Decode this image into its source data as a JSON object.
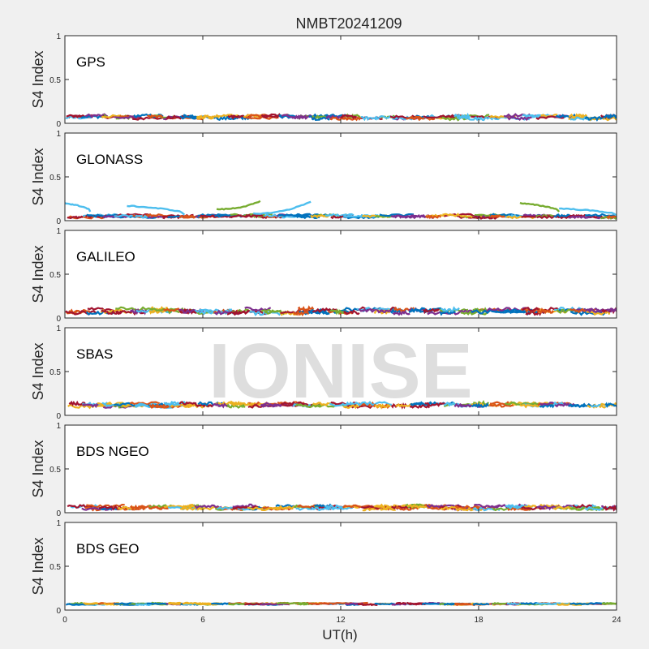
{
  "chart_data": {
    "type": "line",
    "title": "NMBT20241209",
    "xlabel": "UT(h)",
    "ylabel": "S4 Index",
    "xlim": [
      0,
      24
    ],
    "xticks": [
      "0",
      "6",
      "12",
      "18",
      "24"
    ],
    "ylim": [
      0,
      1
    ],
    "yticks": [
      "0",
      "0.5",
      "1"
    ],
    "grid": false,
    "watermark": "IONISE",
    "series_colors": [
      "#0072bd",
      "#d95319",
      "#edb120",
      "#7e2f8e",
      "#77ac30",
      "#4dbeee",
      "#a2142f"
    ],
    "panels": [
      {
        "label": "GPS",
        "baseline": 0.07,
        "noise": 0.02,
        "arcs": []
      },
      {
        "label": "GLONASS",
        "baseline": 0.05,
        "noise": 0.015,
        "arcs": [
          {
            "x0": 0.0,
            "x1": 1.1,
            "y0": 0.2,
            "y1": 0.1,
            "color": "#4dbeee"
          },
          {
            "x0": 2.7,
            "x1": 5.2,
            "y0": 0.17,
            "y1": 0.07,
            "color": "#4dbeee"
          },
          {
            "x0": 6.6,
            "x1": 8.5,
            "y0": 0.13,
            "y1": 0.22,
            "color": "#77ac30"
          },
          {
            "x0": 8.2,
            "x1": 10.7,
            "y0": 0.08,
            "y1": 0.22,
            "color": "#4dbeee"
          },
          {
            "x0": 19.8,
            "x1": 21.5,
            "y0": 0.2,
            "y1": 0.1,
            "color": "#77ac30"
          },
          {
            "x0": 21.5,
            "x1": 24.0,
            "y0": 0.14,
            "y1": 0.06,
            "color": "#4dbeee"
          }
        ]
      },
      {
        "label": "GALILEO",
        "baseline": 0.08,
        "noise": 0.025,
        "arcs": []
      },
      {
        "label": "SBAS",
        "baseline": 0.12,
        "noise": 0.02,
        "arcs": []
      },
      {
        "label": "BDS NGEO",
        "baseline": 0.06,
        "noise": 0.02,
        "arcs": []
      },
      {
        "label": "BDS GEO",
        "baseline": 0.07,
        "noise": 0.008,
        "arcs": []
      }
    ]
  }
}
